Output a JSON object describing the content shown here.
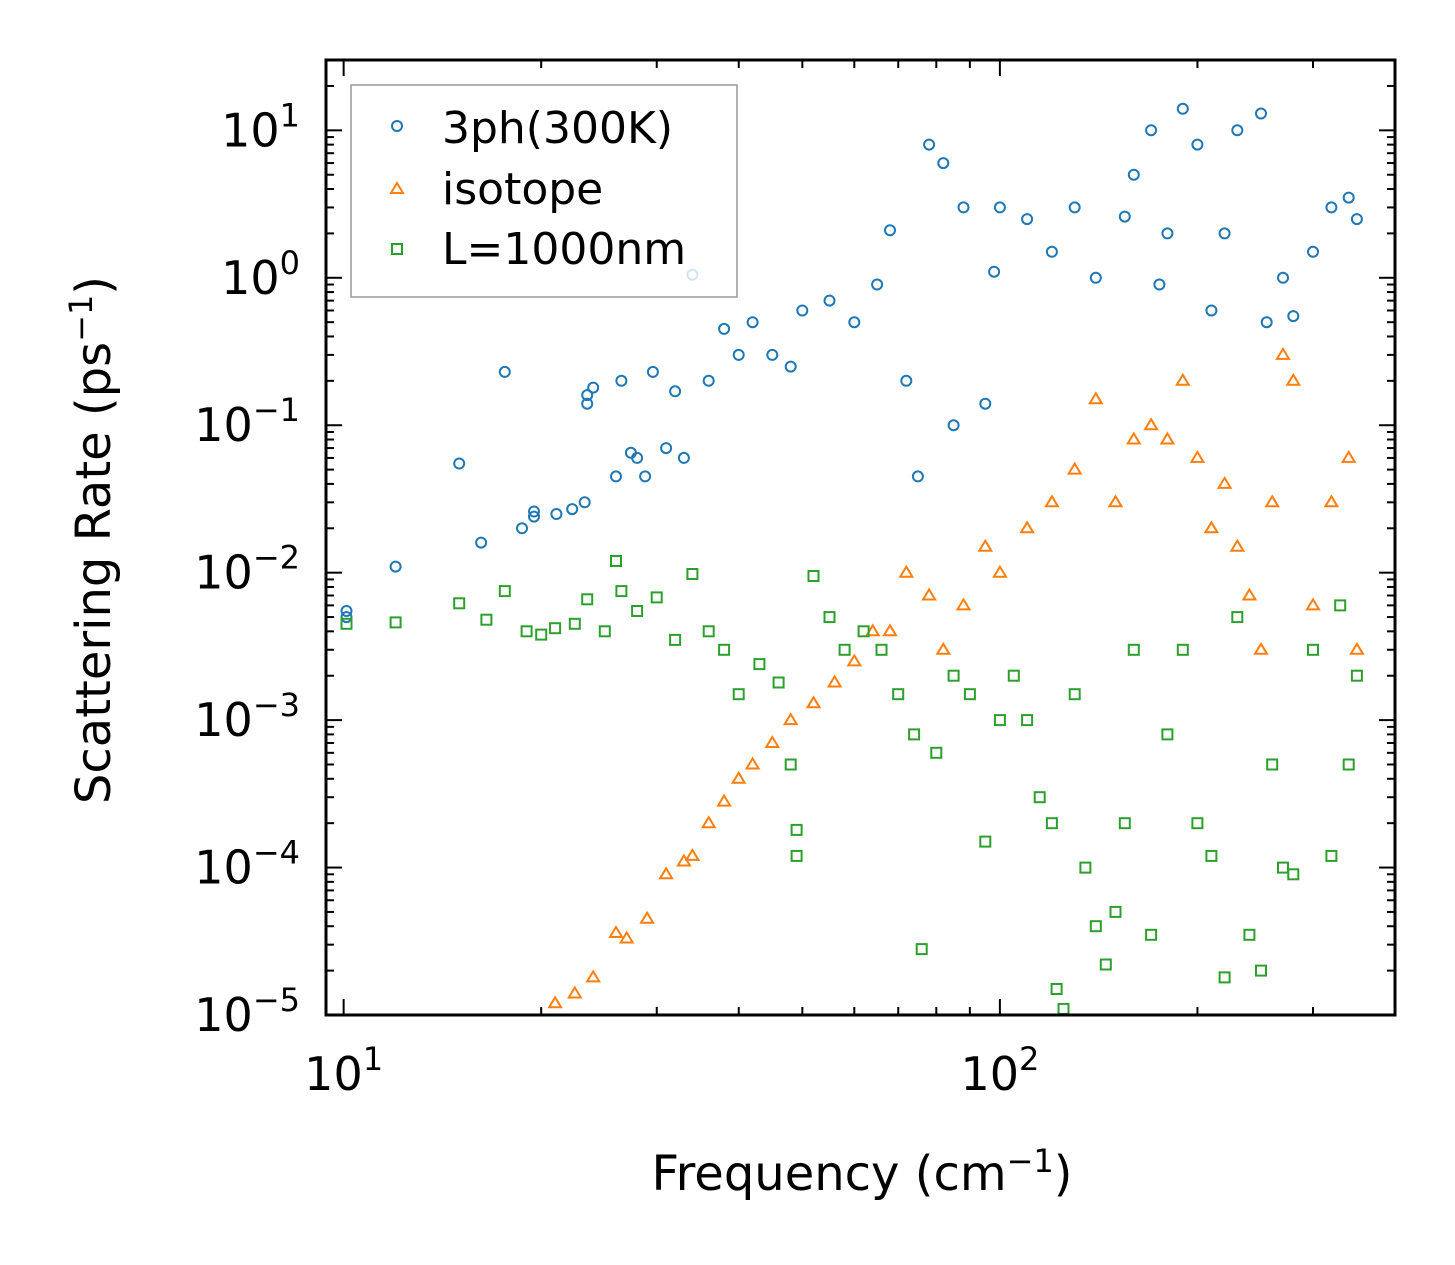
{
  "chart_data": {
    "type": "scatter",
    "title": "",
    "xlabel": "Frequency (cm",
    "xlabel_sup": "−1",
    "xlabel_end": ")",
    "ylabel": "Scattering Rate (ps",
    "ylabel_sup": "−1",
    "ylabel_end": ")",
    "x_scale": "log",
    "y_scale": "log",
    "xlim": [
      9.4,
      400
    ],
    "ylim": [
      1e-05,
      30
    ],
    "x_ticks": [
      {
        "value": 10,
        "base": "10",
        "exp": "1"
      },
      {
        "value": 100,
        "base": "10",
        "exp": "2"
      }
    ],
    "y_ticks": [
      {
        "value": 10,
        "base": "10",
        "exp": "1"
      },
      {
        "value": 1,
        "base": "10",
        "exp": "0"
      },
      {
        "value": 0.1,
        "base": "10",
        "exp": "−1"
      },
      {
        "value": 0.01,
        "base": "10",
        "exp": "−2"
      },
      {
        "value": 0.001,
        "base": "10",
        "exp": "−3"
      },
      {
        "value": 0.0001,
        "base": "10",
        "exp": "−4"
      },
      {
        "value": 1e-05,
        "base": "10",
        "exp": "−5"
      }
    ],
    "legend_position": "top-left",
    "series": [
      {
        "name": "3ph(300K)",
        "marker": "circle",
        "color": "#1f77b4",
        "points": [
          [
            10.1,
            0.0055
          ],
          [
            10.1,
            0.005
          ],
          [
            12,
            0.011
          ],
          [
            15,
            0.055
          ],
          [
            16.2,
            0.016
          ],
          [
            17.6,
            0.23
          ],
          [
            18.7,
            0.02
          ],
          [
            19.5,
            0.026
          ],
          [
            19.5,
            0.024
          ],
          [
            21.1,
            0.025
          ],
          [
            22.3,
            0.027
          ],
          [
            23.3,
            0.03
          ],
          [
            23.5,
            0.14
          ],
          [
            23.5,
            0.16
          ],
          [
            24,
            0.18
          ],
          [
            26,
            0.045
          ],
          [
            26.5,
            0.2
          ],
          [
            27.4,
            0.065
          ],
          [
            28,
            0.06
          ],
          [
            28.8,
            0.045
          ],
          [
            29.6,
            0.23
          ],
          [
            31,
            0.07
          ],
          [
            32,
            0.17
          ],
          [
            33,
            0.06
          ],
          [
            34,
            1.05
          ],
          [
            36,
            0.2
          ],
          [
            38,
            0.45
          ],
          [
            40,
            0.3
          ],
          [
            42,
            0.5
          ],
          [
            45,
            0.3
          ],
          [
            48,
            0.25
          ],
          [
            50,
            0.6
          ],
          [
            55,
            0.7
          ],
          [
            60,
            0.5
          ],
          [
            65,
            0.9
          ],
          [
            68,
            2.1
          ],
          [
            72,
            0.2
          ],
          [
            75,
            0.045
          ],
          [
            78,
            8
          ],
          [
            82,
            6
          ],
          [
            85,
            0.1
          ],
          [
            88,
            3
          ],
          [
            95,
            0.14
          ],
          [
            98,
            1.1
          ],
          [
            100,
            3
          ],
          [
            110,
            2.5
          ],
          [
            120,
            1.5
          ],
          [
            130,
            3
          ],
          [
            140,
            1
          ],
          [
            155,
            2.6
          ],
          [
            160,
            5
          ],
          [
            170,
            10
          ],
          [
            175,
            0.9
          ],
          [
            180,
            2
          ],
          [
            190,
            14
          ],
          [
            200,
            8
          ],
          [
            210,
            0.6
          ],
          [
            220,
            2
          ],
          [
            230,
            10
          ],
          [
            250,
            13
          ],
          [
            255,
            0.5
          ],
          [
            270,
            1
          ],
          [
            280,
            0.55
          ],
          [
            300,
            1.5
          ],
          [
            320,
            3
          ],
          [
            340,
            3.5
          ],
          [
            350,
            2.5
          ]
        ]
      },
      {
        "name": "isotope",
        "marker": "triangle",
        "color": "#ff7f0e",
        "points": [
          [
            21,
            1.2e-05
          ],
          [
            22.5,
            1.4e-05
          ],
          [
            24,
            1.8e-05
          ],
          [
            26,
            3.6e-05
          ],
          [
            27,
            3.3e-05
          ],
          [
            29,
            4.5e-05
          ],
          [
            31,
            9e-05
          ],
          [
            33,
            0.00011
          ],
          [
            34,
            0.00012
          ],
          [
            36,
            0.0002
          ],
          [
            38,
            0.00028
          ],
          [
            40,
            0.0004
          ],
          [
            42,
            0.0005
          ],
          [
            45,
            0.0007
          ],
          [
            48,
            0.001
          ],
          [
            52,
            0.0013
          ],
          [
            56,
            0.0018
          ],
          [
            60,
            0.0025
          ],
          [
            64,
            0.004
          ],
          [
            68,
            0.004
          ],
          [
            72,
            0.01
          ],
          [
            78,
            0.007
          ],
          [
            82,
            0.003
          ],
          [
            88,
            0.006
          ],
          [
            95,
            0.015
          ],
          [
            100,
            0.01
          ],
          [
            110,
            0.02
          ],
          [
            120,
            0.03
          ],
          [
            130,
            0.05
          ],
          [
            140,
            0.15
          ],
          [
            150,
            0.03
          ],
          [
            160,
            0.08
          ],
          [
            170,
            0.1
          ],
          [
            180,
            0.08
          ],
          [
            190,
            0.2
          ],
          [
            200,
            0.06
          ],
          [
            210,
            0.02
          ],
          [
            220,
            0.04
          ],
          [
            230,
            0.015
          ],
          [
            240,
            0.007
          ],
          [
            250,
            0.003
          ],
          [
            260,
            0.03
          ],
          [
            270,
            0.3
          ],
          [
            280,
            0.2
          ],
          [
            300,
            0.006
          ],
          [
            320,
            0.03
          ],
          [
            340,
            0.06
          ],
          [
            350,
            0.003
          ]
        ]
      },
      {
        "name": "L=1000nm",
        "marker": "square",
        "color": "#2ca02c",
        "points": [
          [
            10.1,
            0.0045
          ],
          [
            12,
            0.0046
          ],
          [
            15,
            0.0062
          ],
          [
            16.5,
            0.0048
          ],
          [
            17.6,
            0.0075
          ],
          [
            19,
            0.004
          ],
          [
            20,
            0.0038
          ],
          [
            21,
            0.0042
          ],
          [
            22.5,
            0.0045
          ],
          [
            23.5,
            0.0066
          ],
          [
            25,
            0.004
          ],
          [
            26,
            0.012
          ],
          [
            26.5,
            0.0075
          ],
          [
            28,
            0.0055
          ],
          [
            30,
            0.0068
          ],
          [
            32,
            0.0035
          ],
          [
            34,
            0.0098
          ],
          [
            36,
            0.004
          ],
          [
            38,
            0.003
          ],
          [
            40,
            0.0015
          ],
          [
            43,
            0.0024
          ],
          [
            46,
            0.0018
          ],
          [
            48,
            0.0005
          ],
          [
            49,
            0.00018
          ],
          [
            49,
            0.00012
          ],
          [
            52,
            0.0095
          ],
          [
            55,
            0.005
          ],
          [
            58,
            0.003
          ],
          [
            62,
            0.004
          ],
          [
            66,
            0.003
          ],
          [
            70,
            0.0015
          ],
          [
            74,
            0.0008
          ],
          [
            76,
            2.8e-05
          ],
          [
            80,
            0.0006
          ],
          [
            85,
            0.002
          ],
          [
            90,
            0.0015
          ],
          [
            95,
            0.00015
          ],
          [
            100,
            0.001
          ],
          [
            105,
            0.002
          ],
          [
            110,
            0.001
          ],
          [
            115,
            0.0003
          ],
          [
            120,
            0.0002
          ],
          [
            122,
            1.5e-05
          ],
          [
            125,
            1.1e-05
          ],
          [
            130,
            0.0015
          ],
          [
            135,
            0.0001
          ],
          [
            140,
            4e-05
          ],
          [
            145,
            2.2e-05
          ],
          [
            150,
            5e-05
          ],
          [
            155,
            0.0002
          ],
          [
            160,
            0.003
          ],
          [
            170,
            3.5e-05
          ],
          [
            180,
            0.0008
          ],
          [
            190,
            0.003
          ],
          [
            200,
            0.0002
          ],
          [
            210,
            0.00012
          ],
          [
            220,
            1.8e-05
          ],
          [
            230,
            0.005
          ],
          [
            240,
            3.5e-05
          ],
          [
            250,
            2e-05
          ],
          [
            260,
            0.0005
          ],
          [
            270,
            0.0001
          ],
          [
            280,
            9e-05
          ],
          [
            300,
            0.003
          ],
          [
            320,
            0.00012
          ],
          [
            330,
            0.006
          ],
          [
            340,
            0.0005
          ],
          [
            350,
            0.002
          ]
        ]
      }
    ]
  }
}
